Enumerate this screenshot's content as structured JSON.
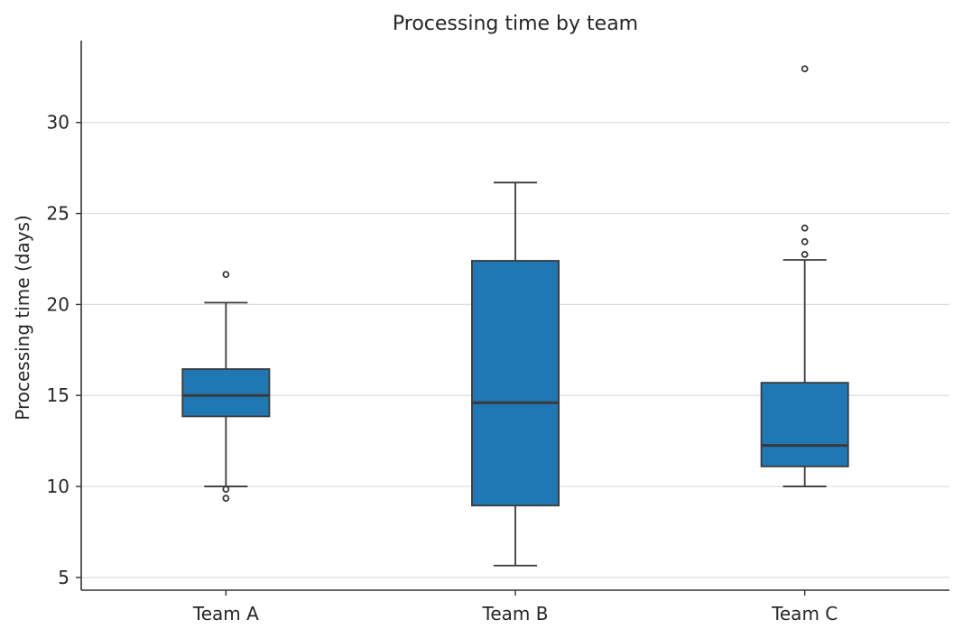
{
  "chart_data": {
    "type": "box",
    "title": "Processing time by team",
    "xlabel": "",
    "ylabel": "Processing time (days)",
    "ylim": [
      4.3,
      34.5
    ],
    "yticks": [
      5,
      10,
      15,
      20,
      25,
      30
    ],
    "grid": "horizontal",
    "box_color": "#1f77b4",
    "categories": [
      "Team A",
      "Team B",
      "Team C"
    ],
    "boxes": [
      {
        "name": "Team A",
        "whislo": 10.0,
        "q1": 13.85,
        "median": 15.0,
        "q3": 16.45,
        "whishi": 20.1,
        "fliers": [
          21.65,
          9.85,
          9.35
        ]
      },
      {
        "name": "Team B",
        "whislo": 5.65,
        "q1": 8.95,
        "median": 14.6,
        "q3": 22.4,
        "whishi": 26.7,
        "fliers": []
      },
      {
        "name": "Team C",
        "whislo": 10.0,
        "q1": 11.1,
        "median": 12.25,
        "q3": 15.7,
        "whishi": 22.45,
        "fliers": [
          32.95,
          24.2,
          23.45,
          22.75
        ]
      }
    ]
  }
}
